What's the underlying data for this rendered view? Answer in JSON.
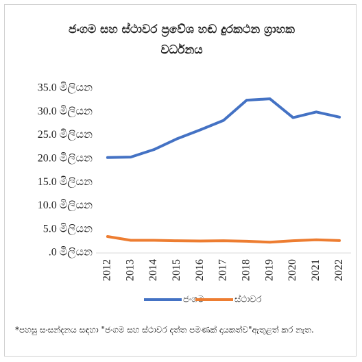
{
  "chart_data": {
    "type": "line",
    "title": "ජංගම සහ ස්ථාවර ප්‍රවේශ හඬ දුරකථන ග්‍රාහක වර්ධනය",
    "categories": [
      "2012",
      "2013",
      "2014",
      "2015",
      "2016",
      "2017",
      "2018",
      "2019",
      "2020",
      "2021",
      "2022"
    ],
    "series": [
      {
        "name": "ජංගම",
        "color": "#4472c4",
        "values": [
          20.3,
          20.4,
          22.0,
          24.3,
          26.2,
          28.2,
          32.5,
          32.8,
          28.8,
          30.0,
          28.9
        ]
      },
      {
        "name": "ස්ථාවර",
        "color": "#ed7d31",
        "values": [
          3.5,
          2.7,
          2.7,
          2.6,
          2.55,
          2.6,
          2.5,
          2.3,
          2.6,
          2.8,
          2.65
        ]
      }
    ],
    "ylim": [
      0,
      35
    ],
    "yticks": [
      {
        "value": 35,
        "label": "35.0 මිලියන"
      },
      {
        "value": 30,
        "label": "30.0 මිලියන"
      },
      {
        "value": 25,
        "label": "25.0 මිලියන"
      },
      {
        "value": 20,
        "label": "20.0 මිලියන"
      },
      {
        "value": 15,
        "label": "15.0 මිලියන"
      },
      {
        "value": 10,
        "label": "10.0 මිලියන"
      },
      {
        "value": 5,
        "label": "5.0 මිලියන"
      },
      {
        "value": 0,
        "label": ".0 මිලියන"
      }
    ],
    "grid": false,
    "legend": "bottom",
    "footnote": "*පහසු සංසන්දනය සඳහා \"ජංගම සහ ස්ථාවර දත්ත පමණක් දායකත්ව\"ඇතුළත් කර නැත."
  }
}
